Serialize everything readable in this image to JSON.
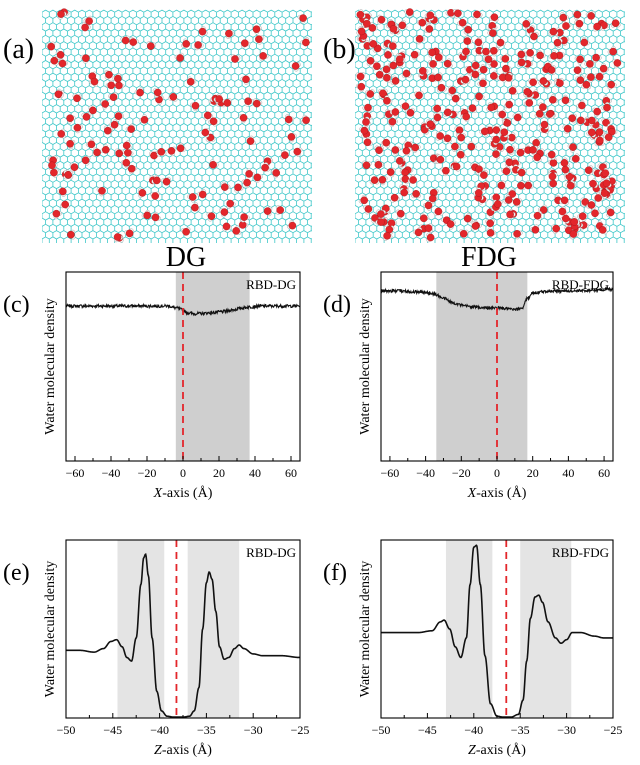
{
  "figure": {
    "panel_letters": [
      "(a)",
      "(b)",
      "(c)",
      "(d)",
      "(e)",
      "(f)"
    ],
    "snapshots": [
      {
        "letter": "(a)",
        "label": "DG",
        "water_count": 130,
        "seed": 11
      },
      {
        "letter": "(b)",
        "label": "FDG",
        "water_count": 360,
        "seed": 29
      }
    ],
    "colors": {
      "lattice": "#3fc7c9",
      "water_o": "#e3262b",
      "water_h": "#f4f4f4",
      "shade": "#cfcfcf",
      "shade_light": "#e4e4e4",
      "line": "#111111",
      "dash": "#e3262b"
    }
  },
  "chart_data": [
    {
      "id": "c",
      "type": "line",
      "letter": "(c)",
      "legend": "RBD-DG",
      "xlabel_var": "X",
      "xlabel_unit": "-axis (Å)",
      "ylabel": "Water molecular density",
      "xlim": [
        -65,
        65
      ],
      "ylim": [
        0,
        1
      ],
      "xticks": [
        -60,
        -40,
        -20,
        0,
        20,
        40,
        60
      ],
      "shade": [
        [
          -4,
          37
        ]
      ],
      "shade_tone": "dark",
      "dashed_x": 0,
      "x": [
        -65,
        -55,
        -45,
        -35,
        -25,
        -15,
        -8,
        -4,
        0,
        2,
        6,
        10,
        16,
        22,
        28,
        33,
        37,
        42,
        50,
        58,
        65
      ],
      "y": [
        0.82,
        0.82,
        0.82,
        0.82,
        0.82,
        0.82,
        0.82,
        0.81,
        0.8,
        0.785,
        0.78,
        0.78,
        0.785,
        0.79,
        0.8,
        0.81,
        0.815,
        0.82,
        0.82,
        0.82,
        0.82
      ],
      "noise": 0.004
    },
    {
      "id": "d",
      "type": "line",
      "letter": "(d)",
      "legend": "RBD-FDG",
      "xlabel_var": "X",
      "xlabel_unit": "-axis (Å)",
      "ylabel": "Water molecular density",
      "xlim": [
        -65,
        65
      ],
      "ylim": [
        0,
        1
      ],
      "xticks": [
        -60,
        -40,
        -20,
        0,
        20,
        40,
        60
      ],
      "shade": [
        [
          -34,
          17
        ]
      ],
      "shade_tone": "dark",
      "dashed_x": 0,
      "x": [
        -65,
        -55,
        -45,
        -38,
        -34,
        -30,
        -24,
        -18,
        -12,
        -6,
        0,
        6,
        10,
        14,
        17,
        20,
        30,
        45,
        55,
        65
      ],
      "y": [
        0.9,
        0.9,
        0.895,
        0.89,
        0.88,
        0.86,
        0.835,
        0.82,
        0.815,
        0.81,
        0.81,
        0.805,
        0.8,
        0.81,
        0.86,
        0.89,
        0.9,
        0.9,
        0.905,
        0.91
      ],
      "noise": 0.004
    },
    {
      "id": "e",
      "type": "line",
      "letter": "(e)",
      "legend": "RBD-DG",
      "xlabel_var": "Z",
      "xlabel_unit": "-axis (Å)",
      "ylabel": "Water molecular density",
      "xlim": [
        -50,
        -25
      ],
      "ylim": [
        0,
        1
      ],
      "xticks": [
        -50,
        -45,
        -40,
        -35,
        -30,
        -25
      ],
      "shade": [
        [
          -44.5,
          -39.5
        ],
        [
          -37,
          -31.5
        ]
      ],
      "shade_tone": "light",
      "dashed_x": -38.2,
      "x": [
        -50,
        -48.5,
        -47,
        -46,
        -45.2,
        -44.6,
        -44,
        -43.5,
        -43,
        -42.5,
        -42,
        -41.7,
        -41.5,
        -41.2,
        -40.8,
        -40.3,
        -39.8,
        -39.2,
        -38.5,
        -38,
        -37.5,
        -36.8,
        -36.3,
        -35.8,
        -35.4,
        -35,
        -34.7,
        -34.4,
        -34,
        -33.6,
        -33.1,
        -32.6,
        -32,
        -31.5,
        -31,
        -30,
        -29,
        -27,
        -25
      ],
      "y": [
        0.38,
        0.38,
        0.37,
        0.39,
        0.43,
        0.44,
        0.4,
        0.34,
        0.32,
        0.45,
        0.75,
        0.9,
        0.92,
        0.8,
        0.45,
        0.15,
        0.04,
        0.01,
        0.005,
        0.005,
        0.005,
        0.01,
        0.04,
        0.17,
        0.5,
        0.76,
        0.82,
        0.78,
        0.6,
        0.4,
        0.33,
        0.34,
        0.39,
        0.41,
        0.39,
        0.36,
        0.35,
        0.35,
        0.34
      ],
      "noise": 0
    },
    {
      "id": "f",
      "type": "line",
      "letter": "(f)",
      "legend": "RBD-FDG",
      "xlabel_var": "Z",
      "xlabel_unit": "-axis (Å)",
      "ylabel": "Water molecular density",
      "xlim": [
        -50,
        -25
      ],
      "ylim": [
        0,
        1
      ],
      "xticks": [
        -50,
        -45,
        -40,
        -35,
        -30,
        -25
      ],
      "shade": [
        [
          -43,
          -38
        ],
        [
          -35,
          -29.5
        ]
      ],
      "shade_tone": "light",
      "dashed_x": -36.5,
      "x": [
        -50,
        -48,
        -46,
        -44.5,
        -43.6,
        -43.2,
        -42.6,
        -42,
        -41.4,
        -40.8,
        -40.4,
        -40,
        -39.7,
        -39.3,
        -38.8,
        -38.2,
        -37.5,
        -36.8,
        -36,
        -35.2,
        -34.7,
        -34.3,
        -33.9,
        -33.4,
        -33,
        -32.6,
        -32,
        -31.2,
        -30.6,
        -30,
        -29.4,
        -28.5,
        -27,
        -26,
        -25
      ],
      "y": [
        0.48,
        0.48,
        0.48,
        0.49,
        0.54,
        0.55,
        0.5,
        0.4,
        0.34,
        0.45,
        0.75,
        0.96,
        0.97,
        0.75,
        0.35,
        0.08,
        0.01,
        0.005,
        0.005,
        0.02,
        0.1,
        0.32,
        0.56,
        0.68,
        0.69,
        0.65,
        0.54,
        0.45,
        0.42,
        0.44,
        0.48,
        0.48,
        0.46,
        0.45,
        0.45
      ],
      "noise": 0
    }
  ]
}
